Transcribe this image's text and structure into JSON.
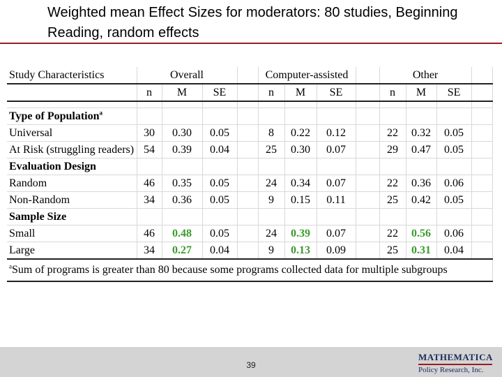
{
  "slide": {
    "title": "Weighted mean Effect Sizes for moderators: 80 studies, Beginning Reading, random effects",
    "page_number": "39"
  },
  "logo": {
    "top": "MATHEMATICA",
    "bottom": "Policy Research, Inc."
  },
  "colors": {
    "accent_rule": "#9b1c24",
    "highlight": "#3c9a2e",
    "footer_bg": "#d4d4d4"
  },
  "table": {
    "header": {
      "study_characteristics": "Study Characteristics",
      "groups": [
        "Overall",
        "Computer-assisted",
        "Other"
      ],
      "stat_labels": [
        "n",
        "M",
        "SE"
      ]
    },
    "sections": [
      {
        "label": "Type of Population",
        "footnote_marker": "a",
        "rows": [
          {
            "label": "Universal",
            "values": [
              "30",
              "0.30",
              "0.05",
              "8",
              "0.22",
              "0.12",
              "22",
              "0.32",
              "0.05"
            ]
          },
          {
            "label": "At Risk (struggling readers)",
            "values": [
              "54",
              "0.39",
              "0.04",
              "25",
              "0.30",
              "0.07",
              "29",
              "0.47",
              "0.05"
            ]
          }
        ]
      },
      {
        "label": "Evaluation Design",
        "footnote_marker": "",
        "rows": [
          {
            "label": "Random",
            "values": [
              "46",
              "0.35",
              "0.05",
              "24",
              "0.34",
              "0.07",
              "22",
              "0.36",
              "0.06"
            ]
          },
          {
            "label": "Non-Random",
            "values": [
              "34",
              "0.36",
              "0.05",
              "9",
              "0.15",
              "0.11",
              "25",
              "0.42",
              "0.05"
            ]
          }
        ]
      },
      {
        "label": "Sample Size",
        "footnote_marker": "",
        "rows": [
          {
            "label": "Small",
            "values": [
              "46",
              "0.48",
              "0.05",
              "24",
              "0.39",
              "0.07",
              "22",
              "0.56",
              "0.06"
            ]
          },
          {
            "label": "Large",
            "values": [
              "34",
              "0.27",
              "0.04",
              "9",
              "0.13",
              "0.09",
              "25",
              "0.31",
              "0.04"
            ]
          }
        ]
      }
    ],
    "footnote": {
      "marker": "a",
      "text": "Sum of programs is greater than 80 because some programs collected data for multiple subgroups"
    }
  }
}
